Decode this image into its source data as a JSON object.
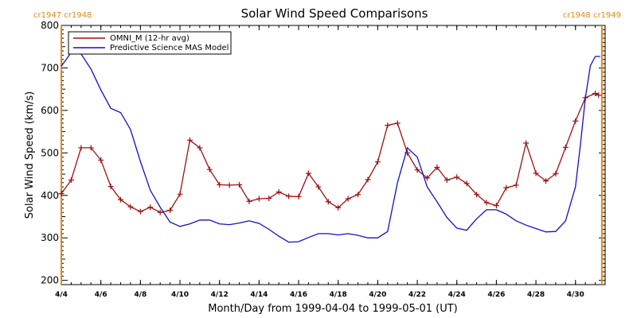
{
  "chart_data": {
    "type": "line",
    "title": "Solar Wind Speed Comparisons",
    "xlabel": "Month/Day from 1999-04-04 to 1999-05-01 (UT)",
    "ylabel": "Solar Wind Speed (km/s)",
    "xlim": [
      "1999-04-04",
      "1999-05-01T12:00"
    ],
    "ylim": [
      190,
      800
    ],
    "y_ticks": [
      200,
      300,
      400,
      500,
      600,
      700,
      800
    ],
    "x_tick_labels": [
      "4/4",
      "4/6",
      "4/8",
      "4/10",
      "4/12",
      "4/14",
      "4/16",
      "4/18",
      "4/20",
      "4/22",
      "4/24",
      "4/26",
      "4/28",
      "4/30"
    ],
    "x_ticks": [
      "1999-04-04",
      "1999-04-06",
      "1999-04-08",
      "1999-04-10",
      "1999-04-12",
      "1999-04-14",
      "1999-04-16",
      "1999-04-18",
      "1999-04-20",
      "1999-04-22",
      "1999-04-24",
      "1999-04-26",
      "1999-04-28",
      "1999-04-30"
    ],
    "legend_position": "top-left",
    "carrington_rotation_markers": [
      {
        "label": "cr1947 cr1948",
        "date": "1999-04-03T22:00",
        "color": "#e08a16",
        "position": "top-left"
      },
      {
        "label": "cr1948 cr1949",
        "date": "1999-05-01T08:00",
        "color": "#e08a16",
        "position": "top-right"
      }
    ],
    "series": [
      {
        "name": "OMNI_M (12-hr avg)",
        "color": "#a01010",
        "marker": "plus",
        "x": [
          "1999-04-04T00:00",
          "1999-04-04T12:00",
          "1999-04-05T00:00",
          "1999-04-05T12:00",
          "1999-04-06T00:00",
          "1999-04-06T12:00",
          "1999-04-07T00:00",
          "1999-04-07T12:00",
          "1999-04-08T00:00",
          "1999-04-08T12:00",
          "1999-04-09T00:00",
          "1999-04-09T12:00",
          "1999-04-10T00:00",
          "1999-04-10T12:00",
          "1999-04-11T00:00",
          "1999-04-11T12:00",
          "1999-04-12T00:00",
          "1999-04-12T12:00",
          "1999-04-13T00:00",
          "1999-04-13T12:00",
          "1999-04-14T00:00",
          "1999-04-14T12:00",
          "1999-04-15T00:00",
          "1999-04-15T12:00",
          "1999-04-16T00:00",
          "1999-04-16T12:00",
          "1999-04-17T00:00",
          "1999-04-17T12:00",
          "1999-04-18T00:00",
          "1999-04-18T12:00",
          "1999-04-19T00:00",
          "1999-04-19T12:00",
          "1999-04-20T00:00",
          "1999-04-20T12:00",
          "1999-04-21T00:00",
          "1999-04-21T12:00",
          "1999-04-22T00:00",
          "1999-04-22T12:00",
          "1999-04-23T00:00",
          "1999-04-23T12:00",
          "1999-04-24T00:00",
          "1999-04-24T12:00",
          "1999-04-25T00:00",
          "1999-04-25T12:00",
          "1999-04-26T00:00",
          "1999-04-26T12:00",
          "1999-04-27T00:00",
          "1999-04-27T12:00",
          "1999-04-28T00:00",
          "1999-04-28T12:00",
          "1999-04-29T00:00",
          "1999-04-29T12:00",
          "1999-04-30T00:00",
          "1999-04-30T12:00",
          "1999-05-01T00:00",
          "1999-05-01T04:00"
        ],
        "y": [
          404,
          436,
          512,
          512,
          483,
          421,
          390,
          373,
          362,
          372,
          360,
          365,
          403,
          530,
          512,
          461,
          425,
          424,
          425,
          386,
          392,
          393,
          408,
          398,
          397,
          452,
          420,
          385,
          371,
          392,
          402,
          437,
          479,
          565,
          570,
          500,
          460,
          441,
          466,
          436,
          443,
          428,
          402,
          383,
          376,
          418,
          424,
          523,
          452,
          434,
          451,
          513,
          575,
          630,
          640,
          636
        ]
      },
      {
        "name": "Predictive Science MAS Model",
        "color": "#1010c8",
        "marker": "none",
        "x": [
          "1999-04-04T00:00",
          "1999-04-04T06:00",
          "1999-04-04T12:00",
          "1999-04-05T00:00",
          "1999-04-05T12:00",
          "1999-04-06T00:00",
          "1999-04-06T12:00",
          "1999-04-07T00:00",
          "1999-04-07T12:00",
          "1999-04-08T00:00",
          "1999-04-08T12:00",
          "1999-04-09T00:00",
          "1999-04-09T12:00",
          "1999-04-10T00:00",
          "1999-04-10T12:00",
          "1999-04-11T00:00",
          "1999-04-11T12:00",
          "1999-04-12T00:00",
          "1999-04-12T12:00",
          "1999-04-13T00:00",
          "1999-04-13T12:00",
          "1999-04-14T00:00",
          "1999-04-14T12:00",
          "1999-04-15T00:00",
          "1999-04-15T12:00",
          "1999-04-16T00:00",
          "1999-04-16T12:00",
          "1999-04-17T00:00",
          "1999-04-17T12:00",
          "1999-04-18T00:00",
          "1999-04-18T12:00",
          "1999-04-19T00:00",
          "1999-04-19T12:00",
          "1999-04-20T00:00",
          "1999-04-20T12:00",
          "1999-04-21T00:00",
          "1999-04-21T12:00",
          "1999-04-22T00:00",
          "1999-04-22T12:00",
          "1999-04-23T00:00",
          "1999-04-23T12:00",
          "1999-04-24T00:00",
          "1999-04-24T12:00",
          "1999-04-25T00:00",
          "1999-04-25T12:00",
          "1999-04-26T00:00",
          "1999-04-26T12:00",
          "1999-04-27T00:00",
          "1999-04-27T12:00",
          "1999-04-28T00:00",
          "1999-04-28T12:00",
          "1999-04-29T00:00",
          "1999-04-29T12:00",
          "1999-04-30T00:00",
          "1999-04-30T06:00",
          "1999-04-30T12:00",
          "1999-04-30T18:00",
          "1999-05-01T00:00",
          "1999-05-01T06:00"
        ],
        "y": [
          704,
          720,
          737,
          733,
          697,
          648,
          605,
          595,
          555,
          480,
          412,
          372,
          337,
          327,
          333,
          342,
          342,
          333,
          331,
          335,
          340,
          334,
          320,
          304,
          290,
          291,
          301,
          310,
          310,
          307,
          310,
          306,
          300,
          300,
          315,
          430,
          512,
          490,
          420,
          385,
          348,
          323,
          318,
          345,
          366,
          366,
          356,
          340,
          330,
          322,
          314,
          315,
          340,
          420,
          520,
          630,
          705,
          727,
          727
        ]
      }
    ]
  }
}
